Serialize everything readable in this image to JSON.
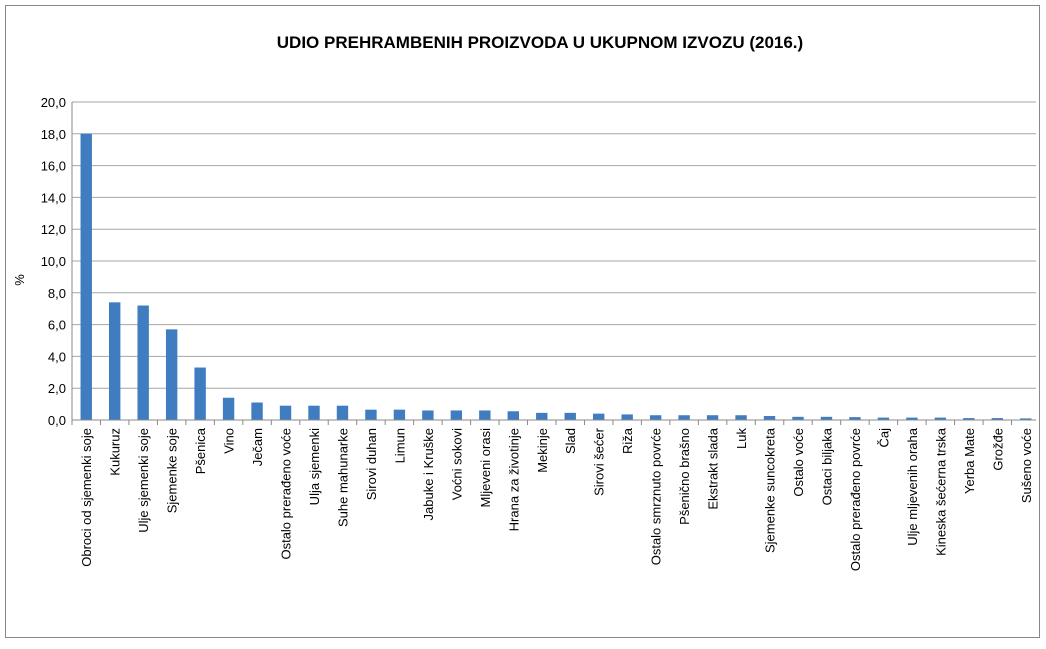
{
  "chart_data": {
    "type": "bar",
    "title": "UDIO PREHRAMBENIH PROIZVODA U UKUPNOM IZVOZU (2016.)",
    "y_label": "%",
    "categories": [
      "Obroci od sjemenki soje",
      "Kukuruz",
      "Ulje sjemenki soje",
      "Sjemenke soje",
      "Pšenica",
      "Vino",
      "Ječam",
      "Ostalo prerađeno voće",
      "Ulja sjemenki",
      "Suhe mahunarke",
      "Sirovi duhan",
      "Limun",
      "Jabuke i Kruške",
      "Voćni sokovi",
      "Mljeveni orasi",
      "Hrana za životinje",
      "Mekinje",
      "Slad",
      "Sirovi šećer",
      "Riža",
      "Ostalo smrznuto povrće",
      "Pšenično brašno",
      "Ekstrakt slada",
      "Luk",
      "Sjemenke suncokreta",
      "Ostalo voće",
      "Ostaci biljaka",
      "Ostalo prerađeno povrće",
      "Čaj",
      "Ulje mljevenih oraha",
      "Kineska šećerna trska",
      "Yerba Mate",
      "Grožđe",
      "Sušeno voće"
    ],
    "values": [
      18.0,
      7.4,
      7.2,
      5.7,
      3.3,
      1.4,
      1.1,
      0.9,
      0.9,
      0.9,
      0.65,
      0.65,
      0.6,
      0.6,
      0.6,
      0.55,
      0.45,
      0.45,
      0.4,
      0.35,
      0.3,
      0.3,
      0.3,
      0.3,
      0.25,
      0.2,
      0.2,
      0.18,
      0.15,
      0.15,
      0.15,
      0.12,
      0.12,
      0.1
    ],
    "color": "#3f7cc0",
    "ylim": [
      0,
      20
    ],
    "yticks": [
      {
        "value": 0,
        "label": "0,0"
      },
      {
        "value": 2,
        "label": "2,0"
      },
      {
        "value": 4,
        "label": "4,0"
      },
      {
        "value": 6,
        "label": "6,0"
      },
      {
        "value": 8,
        "label": "8,0"
      },
      {
        "value": 10,
        "label": "10,0"
      },
      {
        "value": 12,
        "label": "12,0"
      },
      {
        "value": 14,
        "label": "14,0"
      },
      {
        "value": 16,
        "label": "16,0"
      },
      {
        "value": 18,
        "label": "18,0"
      },
      {
        "value": 20,
        "label": "20,0"
      }
    ],
    "grid": true
  }
}
